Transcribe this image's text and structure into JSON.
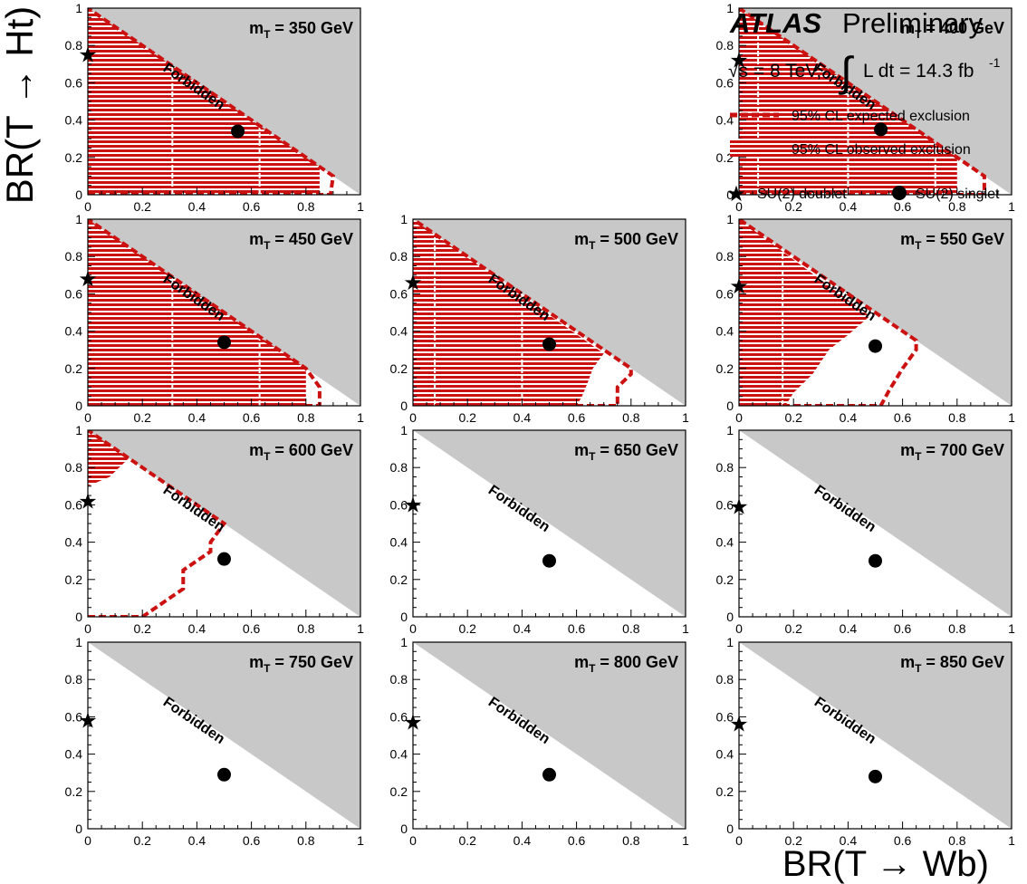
{
  "figure": {
    "y_axis_title": "BR(T → Ht)",
    "x_axis_title": "BR(T → Wb)",
    "forbidden_label": "Forbidden",
    "colors": {
      "forbidden": "#c8c8c8",
      "exclusion": "#cc1111",
      "frame": "#000000",
      "background": "#ffffff"
    }
  },
  "legend": {
    "experiment": "ATLAS",
    "status": "Preliminary",
    "energy": "√s = 8 TeV,",
    "lumi": "L dt = 14.3 fb",
    "lumi_exp": "-1",
    "expected_label": "95% CL expected exclusion",
    "observed_label": "95% CL observed exclusion",
    "doublet_label": "SU(2) doublet",
    "singlet_label": "SU(2) singlet",
    "doublet_icon": "star-icon",
    "singlet_icon": "dot-icon"
  },
  "chart_data": [
    {
      "type": "area",
      "title": "m_T = 350 GeV",
      "mass_gev": 350,
      "xlim": [
        0,
        1
      ],
      "ylim": [
        0,
        1
      ],
      "xticks": [
        "0",
        "0.2",
        "0.4",
        "0.6",
        "0.8",
        "1"
      ],
      "yticks": [
        "0",
        "0.2",
        "0.4",
        "0.6",
        "0.8",
        "1"
      ],
      "observed_exclusion": [
        [
          0,
          0
        ],
        [
          0.85,
          0
        ],
        [
          0.85,
          0.15
        ],
        [
          0,
          1
        ]
      ],
      "observed_gaps_x": [
        0.31,
        0.63
      ],
      "expected_contour": [
        [
          0,
          0
        ],
        [
          0.89,
          0
        ],
        [
          0.9,
          0.1
        ],
        [
          0.85,
          0.15
        ],
        [
          0,
          1
        ]
      ],
      "su2_doublet": [
        0,
        0.75
      ],
      "su2_singlet": [
        0.55,
        0.34
      ]
    },
    {
      "type": "area",
      "title": "m_T = 400 GeV",
      "mass_gev": 400,
      "xlim": [
        0,
        1
      ],
      "ylim": [
        0,
        1
      ],
      "xticks": [
        "0",
        "0.2",
        "0.4",
        "0.6",
        "0.8",
        "1"
      ],
      "yticks": [
        "0",
        "0.2",
        "0.4",
        "0.6",
        "0.8",
        "1"
      ],
      "observed_exclusion": [
        [
          0,
          0
        ],
        [
          0.8,
          0
        ],
        [
          0.8,
          0.2
        ],
        [
          0,
          1
        ]
      ],
      "observed_gaps_x": [
        0.07,
        0.4,
        0.72
      ],
      "expected_contour": [
        [
          0,
          0
        ],
        [
          0.9,
          0
        ],
        [
          0.9,
          0.1
        ],
        [
          0.8,
          0.2
        ],
        [
          0,
          1
        ]
      ],
      "su2_doublet": [
        0,
        0.72
      ],
      "su2_singlet": [
        0.52,
        0.35
      ]
    },
    {
      "type": "area",
      "title": "m_T = 450 GeV",
      "mass_gev": 450,
      "xlim": [
        0,
        1
      ],
      "ylim": [
        0,
        1
      ],
      "xticks": [
        "0",
        "0.2",
        "0.4",
        "0.6",
        "0.8",
        "1"
      ],
      "yticks": [
        "0",
        "0.2",
        "0.4",
        "0.6",
        "0.8",
        "1"
      ],
      "observed_exclusion": [
        [
          0,
          0
        ],
        [
          0.8,
          0
        ],
        [
          0.8,
          0.2
        ],
        [
          0,
          1
        ]
      ],
      "observed_gaps_x": [
        0.31,
        0.63
      ],
      "expected_contour": [
        [
          0,
          0
        ],
        [
          0.85,
          0
        ],
        [
          0.85,
          0.1
        ],
        [
          0.8,
          0.2
        ],
        [
          0,
          1
        ]
      ],
      "su2_doublet": [
        0,
        0.68
      ],
      "su2_singlet": [
        0.5,
        0.34
      ]
    },
    {
      "type": "area",
      "title": "m_T = 500 GeV",
      "mass_gev": 500,
      "xlim": [
        0,
        1
      ],
      "ylim": [
        0,
        1
      ],
      "xticks": [
        "0",
        "0.2",
        "0.4",
        "0.6",
        "0.8",
        "1"
      ],
      "yticks": [
        "0",
        "0.2",
        "0.4",
        "0.6",
        "0.8",
        "1"
      ],
      "observed_exclusion": [
        [
          0,
          0
        ],
        [
          0.6,
          0
        ],
        [
          0.62,
          0.05
        ],
        [
          0.64,
          0.12
        ],
        [
          0.66,
          0.2
        ],
        [
          0.7,
          0.28
        ],
        [
          0,
          1
        ]
      ],
      "observed_gaps_x": [
        0.08,
        0.4
      ],
      "expected_contour": [
        [
          0,
          0
        ],
        [
          0.75,
          0
        ],
        [
          0.75,
          0.1
        ],
        [
          0.8,
          0.17
        ],
        [
          0.8,
          0.2
        ],
        [
          0.7,
          0.3
        ],
        [
          0,
          1
        ]
      ],
      "su2_doublet": [
        0,
        0.66
      ],
      "su2_singlet": [
        0.5,
        0.33
      ]
    },
    {
      "type": "area",
      "title": "m_T = 550 GeV",
      "mass_gev": 550,
      "xlim": [
        0,
        1
      ],
      "ylim": [
        0,
        1
      ],
      "xticks": [
        "0",
        "0.2",
        "0.4",
        "0.6",
        "0.8",
        "1"
      ],
      "yticks": [
        "0",
        "0.2",
        "0.4",
        "0.6",
        "0.8",
        "1"
      ],
      "observed_exclusion": [
        [
          0,
          0
        ],
        [
          0.17,
          0
        ],
        [
          0.2,
          0.07
        ],
        [
          0.27,
          0.17
        ],
        [
          0.33,
          0.3
        ],
        [
          0.4,
          0.38
        ],
        [
          0.48,
          0.48
        ],
        [
          0,
          1
        ]
      ],
      "observed_gaps_x": [
        0.16
      ],
      "expected_contour": [
        [
          0,
          0
        ],
        [
          0.52,
          0
        ],
        [
          0.55,
          0.08
        ],
        [
          0.6,
          0.2
        ],
        [
          0.65,
          0.3
        ],
        [
          0.65,
          0.35
        ],
        [
          0,
          1
        ]
      ],
      "su2_doublet": [
        0,
        0.64
      ],
      "su2_singlet": [
        0.5,
        0.32
      ]
    },
    {
      "type": "area",
      "title": "m_T = 600 GeV",
      "mass_gev": 600,
      "xlim": [
        0,
        1
      ],
      "ylim": [
        0,
        1
      ],
      "xticks": [
        "0",
        "0.2",
        "0.4",
        "0.6",
        "0.8",
        "1"
      ],
      "yticks": [
        "0",
        "0.2",
        "0.4",
        "0.6",
        "0.8",
        "1"
      ],
      "observed_exclusion": [
        [
          0,
          0.7
        ],
        [
          0.08,
          0.75
        ],
        [
          0.15,
          0.85
        ],
        [
          0,
          1
        ]
      ],
      "observed_gaps_x": [],
      "expected_contour": [
        [
          0,
          0
        ],
        [
          0.2,
          0
        ],
        [
          0.35,
          0.15
        ],
        [
          0.35,
          0.25
        ],
        [
          0.45,
          0.35
        ],
        [
          0.45,
          0.4
        ],
        [
          0.5,
          0.5
        ],
        [
          0,
          1
        ]
      ],
      "su2_doublet": [
        0,
        0.62
      ],
      "su2_singlet": [
        0.5,
        0.31
      ]
    },
    {
      "type": "area",
      "title": "m_T = 650 GeV",
      "mass_gev": 650,
      "xlim": [
        0,
        1
      ],
      "ylim": [
        0,
        1
      ],
      "xticks": [
        "0",
        "0.2",
        "0.4",
        "0.6",
        "0.8",
        "1"
      ],
      "yticks": [
        "0",
        "0.2",
        "0.4",
        "0.6",
        "0.8",
        "1"
      ],
      "observed_exclusion": [],
      "observed_gaps_x": [],
      "expected_contour": [],
      "su2_doublet": [
        0,
        0.6
      ],
      "su2_singlet": [
        0.5,
        0.3
      ]
    },
    {
      "type": "area",
      "title": "m_T = 700 GeV",
      "mass_gev": 700,
      "xlim": [
        0,
        1
      ],
      "ylim": [
        0,
        1
      ],
      "xticks": [
        "0",
        "0.2",
        "0.4",
        "0.6",
        "0.8",
        "1"
      ],
      "yticks": [
        "0",
        "0.2",
        "0.4",
        "0.6",
        "0.8",
        "1"
      ],
      "observed_exclusion": [],
      "observed_gaps_x": [],
      "expected_contour": [],
      "su2_doublet": [
        0,
        0.59
      ],
      "su2_singlet": [
        0.5,
        0.3
      ]
    },
    {
      "type": "area",
      "title": "m_T = 750 GeV",
      "mass_gev": 750,
      "xlim": [
        0,
        1
      ],
      "ylim": [
        0,
        1
      ],
      "xticks": [
        "0",
        "0.2",
        "0.4",
        "0.6",
        "0.8",
        "1"
      ],
      "yticks": [
        "0",
        "0.2",
        "0.4",
        "0.6",
        "0.8",
        "1"
      ],
      "observed_exclusion": [],
      "observed_gaps_x": [],
      "expected_contour": [],
      "su2_doublet": [
        0,
        0.58
      ],
      "su2_singlet": [
        0.5,
        0.29
      ]
    },
    {
      "type": "area",
      "title": "m_T = 800 GeV",
      "mass_gev": 800,
      "xlim": [
        0,
        1
      ],
      "ylim": [
        0,
        1
      ],
      "xticks": [
        "0",
        "0.2",
        "0.4",
        "0.6",
        "0.8",
        "1"
      ],
      "yticks": [
        "0",
        "0.2",
        "0.4",
        "0.6",
        "0.8",
        "1"
      ],
      "observed_exclusion": [],
      "observed_gaps_x": [],
      "expected_contour": [],
      "su2_doublet": [
        0,
        0.57
      ],
      "su2_singlet": [
        0.5,
        0.29
      ]
    },
    {
      "type": "area",
      "title": "m_T = 850 GeV",
      "mass_gev": 850,
      "xlim": [
        0,
        1
      ],
      "ylim": [
        0,
        1
      ],
      "xticks": [
        "0",
        "0.2",
        "0.4",
        "0.6",
        "0.8",
        "1"
      ],
      "yticks": [
        "0",
        "0.2",
        "0.4",
        "0.6",
        "0.8",
        "1"
      ],
      "observed_exclusion": [],
      "observed_gaps_x": [],
      "expected_contour": [],
      "su2_doublet": [
        0,
        0.56
      ],
      "su2_singlet": [
        0.5,
        0.28
      ]
    }
  ]
}
